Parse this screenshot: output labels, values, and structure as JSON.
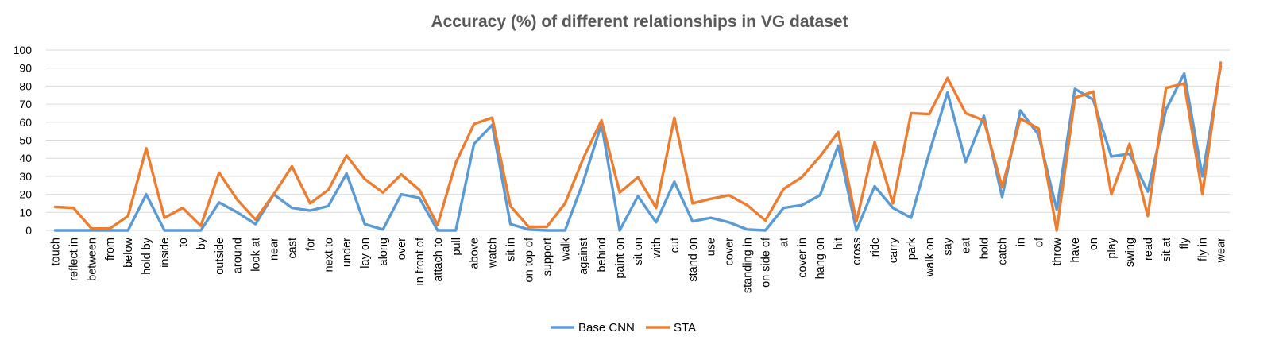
{
  "chart_data": {
    "type": "line",
    "title": "Accuracy (%) of different relationships in VG dataset",
    "xlabel": "",
    "ylabel": "",
    "ylim": [
      0,
      100
    ],
    "yticks": [
      0,
      10,
      20,
      30,
      40,
      50,
      60,
      70,
      80,
      90,
      100
    ],
    "grid": true,
    "legend_position": "bottom-center",
    "categories": [
      "touch",
      "reflect in",
      "between",
      "from",
      "below",
      "hold by",
      "inside",
      "to",
      "by",
      "outside",
      "around",
      "look at",
      "near",
      "cast",
      "for",
      "next to",
      "under",
      "lay on",
      "along",
      "over",
      "in front of",
      "attach to",
      "pull",
      "above",
      "watch",
      "sit in",
      "on top of",
      "support",
      "walk",
      "against",
      "behind",
      "paint on",
      "sit on",
      "with",
      "cut",
      "stand on",
      "use",
      "cover",
      "standing in",
      "on side of",
      "at",
      "cover in",
      "hang on",
      "hit",
      "cross",
      "ride",
      "carry",
      "park",
      "walk on",
      "say",
      "eat",
      "hold",
      "catch",
      "in",
      "of",
      "throw",
      "have",
      "on",
      "play",
      "swing",
      "read",
      "sit at",
      "fly",
      "fly in",
      "wear"
    ],
    "series": [
      {
        "name": "Base CNN",
        "color": "#5B9BD5",
        "values": [
          0,
          0,
          0,
          0,
          0,
          20,
          0,
          0,
          0,
          15.5,
          10,
          3.5,
          20,
          12.5,
          11,
          13.5,
          31.5,
          3.5,
          0.5,
          20,
          18,
          0,
          0,
          48,
          58.5,
          3.5,
          0.5,
          0,
          0,
          27,
          59,
          0,
          19,
          4.5,
          27,
          5,
          7,
          4.5,
          0.5,
          0,
          12.5,
          14,
          19.5,
          47,
          0,
          24.5,
          12.5,
          7,
          43,
          76.5,
          38,
          63.5,
          18.5,
          66.5,
          53,
          11.5,
          78.5,
          72.5,
          41,
          42.5,
          21.5,
          67,
          87,
          30,
          91
        ]
      },
      {
        "name": "STA",
        "color": "#ED7D31",
        "values": [
          13,
          12.5,
          1,
          1,
          8,
          45.5,
          7,
          12.5,
          2.5,
          32,
          17,
          6,
          20,
          35.5,
          15,
          22.5,
          41.5,
          28.5,
          21,
          31,
          22.5,
          3,
          37.5,
          59,
          62.5,
          13.5,
          2,
          2,
          15,
          40,
          61,
          21,
          29.5,
          12.5,
          62.5,
          15,
          17.5,
          19.5,
          14,
          5.5,
          23,
          29.5,
          41,
          54.5,
          5,
          49,
          15,
          65,
          64.5,
          84.5,
          65,
          61,
          24,
          62,
          56.5,
          0,
          73.5,
          77,
          20,
          48,
          8,
          79,
          81.5,
          20,
          93
        ]
      }
    ]
  }
}
